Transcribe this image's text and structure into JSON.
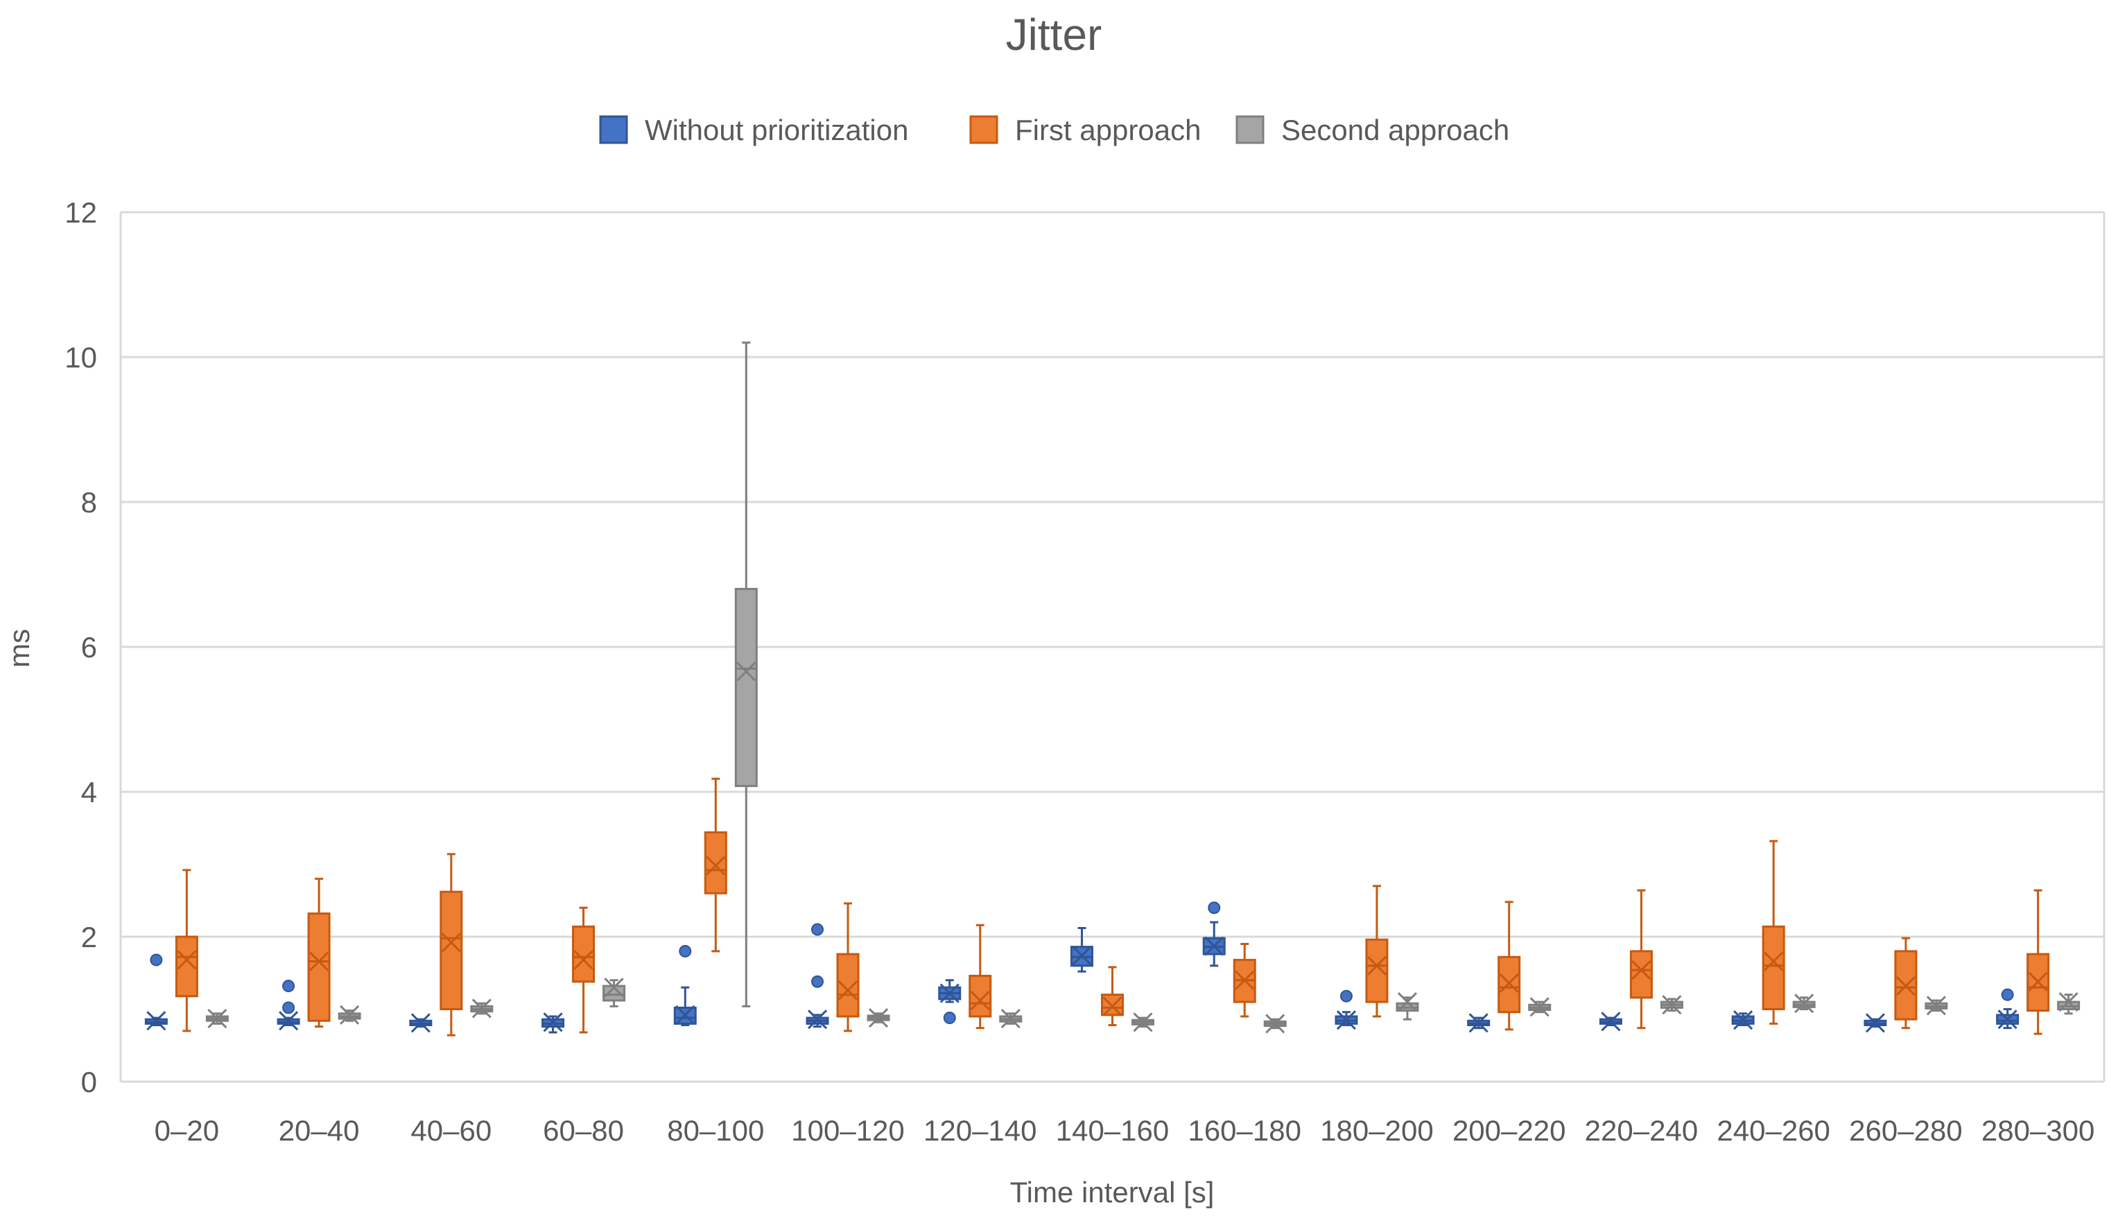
{
  "chart_data": {
    "type": "boxplot",
    "title": "Jitter",
    "xlabel": "Time interval [s]",
    "ylabel": "ms",
    "ylim": [
      0,
      12
    ],
    "yticks": [
      0,
      2,
      4,
      6,
      8,
      10,
      12
    ],
    "grid": true,
    "legend_position": "top",
    "categories": [
      "0–20",
      "20–40",
      "40–60",
      "60–80",
      "80–100",
      "100–120",
      "120–140",
      "140–160",
      "160–180",
      "180–200",
      "200–220",
      "220–240",
      "240–260",
      "260–280",
      "280–300"
    ],
    "series": [
      {
        "name": "Without prioritization",
        "color": "#4472C4",
        "stroke": "#2F5597",
        "boxes": [
          {
            "min": 0.78,
            "q1": 0.8,
            "median": 0.82,
            "q3": 0.86,
            "max": 0.88,
            "mean": 0.84,
            "outliers": [
              1.68
            ]
          },
          {
            "min": 0.78,
            "q1": 0.8,
            "median": 0.82,
            "q3": 0.86,
            "max": 0.88,
            "mean": 0.84,
            "outliers": [
              1.02,
              1.32
            ]
          },
          {
            "min": 0.76,
            "q1": 0.78,
            "median": 0.8,
            "q3": 0.84,
            "max": 0.86,
            "mean": 0.81,
            "outliers": []
          },
          {
            "min": 0.68,
            "q1": 0.76,
            "median": 0.8,
            "q3": 0.86,
            "max": 0.9,
            "mean": 0.82,
            "outliers": []
          },
          {
            "min": 0.78,
            "q1": 0.8,
            "median": 0.88,
            "q3": 1.02,
            "max": 1.3,
            "mean": 0.92,
            "outliers": [
              1.8
            ]
          },
          {
            "min": 0.76,
            "q1": 0.8,
            "median": 0.84,
            "q3": 0.88,
            "max": 0.92,
            "mean": 0.86,
            "outliers": [
              1.38,
              2.1
            ]
          },
          {
            "min": 1.1,
            "q1": 1.14,
            "median": 1.22,
            "q3": 1.3,
            "max": 1.4,
            "mean": 1.22,
            "outliers": [
              0.88
            ]
          },
          {
            "min": 1.52,
            "q1": 1.6,
            "median": 1.72,
            "q3": 1.86,
            "max": 2.12,
            "mean": 1.74,
            "outliers": []
          },
          {
            "min": 1.6,
            "q1": 1.76,
            "median": 1.86,
            "q3": 1.98,
            "max": 2.2,
            "mean": 1.87,
            "outliers": [
              2.4
            ]
          },
          {
            "min": 0.78,
            "q1": 0.8,
            "median": 0.84,
            "q3": 0.9,
            "max": 0.96,
            "mean": 0.85,
            "outliers": [
              1.18
            ]
          },
          {
            "min": 0.74,
            "q1": 0.78,
            "median": 0.8,
            "q3": 0.84,
            "max": 0.88,
            "mean": 0.81,
            "outliers": []
          },
          {
            "min": 0.78,
            "q1": 0.8,
            "median": 0.82,
            "q3": 0.86,
            "max": 0.88,
            "mean": 0.83,
            "outliers": []
          },
          {
            "min": 0.78,
            "q1": 0.8,
            "median": 0.84,
            "q3": 0.9,
            "max": 0.94,
            "mean": 0.85,
            "outliers": []
          },
          {
            "min": 0.76,
            "q1": 0.78,
            "median": 0.8,
            "q3": 0.84,
            "max": 0.86,
            "mean": 0.81,
            "outliers": []
          },
          {
            "min": 0.74,
            "q1": 0.8,
            "median": 0.84,
            "q3": 0.92,
            "max": 1.0,
            "mean": 0.86,
            "outliers": [
              1.2
            ]
          }
        ]
      },
      {
        "name": "First approach",
        "color": "#ED7D31",
        "stroke": "#C55A11",
        "boxes": [
          {
            "min": 0.7,
            "q1": 1.18,
            "median": 1.72,
            "q3": 2.0,
            "max": 2.92,
            "mean": 1.68,
            "outliers": []
          },
          {
            "min": 0.76,
            "q1": 0.84,
            "median": 1.66,
            "q3": 2.32,
            "max": 2.8,
            "mean": 1.66,
            "outliers": []
          },
          {
            "min": 0.64,
            "q1": 1.0,
            "median": 1.98,
            "q3": 2.62,
            "max": 3.14,
            "mean": 1.92,
            "outliers": []
          },
          {
            "min": 0.68,
            "q1": 1.38,
            "median": 1.72,
            "q3": 2.14,
            "max": 2.4,
            "mean": 1.68,
            "outliers": []
          },
          {
            "min": 1.8,
            "q1": 2.6,
            "median": 2.92,
            "q3": 3.44,
            "max": 4.18,
            "mean": 2.98,
            "outliers": []
          },
          {
            "min": 0.7,
            "q1": 0.9,
            "median": 1.2,
            "q3": 1.76,
            "max": 2.46,
            "mean": 1.26,
            "outliers": []
          },
          {
            "min": 0.74,
            "q1": 0.9,
            "median": 1.08,
            "q3": 1.46,
            "max": 2.16,
            "mean": 1.12,
            "outliers": []
          },
          {
            "min": 0.78,
            "q1": 0.92,
            "median": 1.02,
            "q3": 1.2,
            "max": 1.58,
            "mean": 1.04,
            "outliers": []
          },
          {
            "min": 0.9,
            "q1": 1.1,
            "median": 1.4,
            "q3": 1.68,
            "max": 1.9,
            "mean": 1.4,
            "outliers": []
          },
          {
            "min": 0.9,
            "q1": 1.1,
            "median": 1.6,
            "q3": 1.96,
            "max": 2.7,
            "mean": 1.6,
            "outliers": []
          },
          {
            "min": 0.72,
            "q1": 0.96,
            "median": 1.3,
            "q3": 1.72,
            "max": 2.48,
            "mean": 1.36,
            "outliers": []
          },
          {
            "min": 0.74,
            "q1": 1.16,
            "median": 1.54,
            "q3": 1.8,
            "max": 2.64,
            "mean": 1.54,
            "outliers": []
          },
          {
            "min": 0.8,
            "q1": 1.0,
            "median": 1.6,
            "q3": 2.14,
            "max": 3.32,
            "mean": 1.66,
            "outliers": []
          },
          {
            "min": 0.74,
            "q1": 0.86,
            "median": 1.3,
            "q3": 1.8,
            "max": 1.98,
            "mean": 1.32,
            "outliers": []
          },
          {
            "min": 0.66,
            "q1": 0.98,
            "median": 1.3,
            "q3": 1.76,
            "max": 2.64,
            "mean": 1.38,
            "outliers": []
          }
        ]
      },
      {
        "name": "Second approach",
        "color": "#A5A5A5",
        "stroke": "#7F7F7F",
        "boxes": [
          {
            "min": 0.8,
            "q1": 0.84,
            "median": 0.87,
            "q3": 0.9,
            "max": 0.94,
            "mean": 0.87,
            "outliers": []
          },
          {
            "min": 0.84,
            "q1": 0.87,
            "median": 0.9,
            "q3": 0.94,
            "max": 0.98,
            "mean": 0.92,
            "outliers": []
          },
          {
            "min": 0.94,
            "q1": 0.97,
            "median": 1.0,
            "q3": 1.04,
            "max": 1.08,
            "mean": 1.01,
            "outliers": []
          },
          {
            "min": 1.04,
            "q1": 1.12,
            "median": 1.2,
            "q3": 1.32,
            "max": 1.4,
            "mean": 1.3,
            "outliers": []
          },
          {
            "min": 1.04,
            "q1": 4.08,
            "median": 5.7,
            "q3": 6.8,
            "max": 10.2,
            "mean": 5.66,
            "outliers": []
          },
          {
            "min": 0.82,
            "q1": 0.85,
            "median": 0.88,
            "q3": 0.91,
            "max": 0.94,
            "mean": 0.88,
            "outliers": []
          },
          {
            "min": 0.8,
            "q1": 0.83,
            "median": 0.86,
            "q3": 0.9,
            "max": 0.94,
            "mean": 0.87,
            "outliers": []
          },
          {
            "min": 0.76,
            "q1": 0.79,
            "median": 0.82,
            "q3": 0.85,
            "max": 0.88,
            "mean": 0.82,
            "outliers": []
          },
          {
            "min": 0.74,
            "q1": 0.77,
            "median": 0.8,
            "q3": 0.83,
            "max": 0.86,
            "mean": 0.8,
            "outliers": []
          },
          {
            "min": 0.86,
            "q1": 0.98,
            "median": 1.02,
            "q3": 1.08,
            "max": 1.16,
            "mean": 1.1,
            "outliers": []
          },
          {
            "min": 0.96,
            "q1": 0.99,
            "median": 1.02,
            "q3": 1.06,
            "max": 1.1,
            "mean": 1.03,
            "outliers": []
          },
          {
            "min": 0.98,
            "q1": 1.02,
            "median": 1.06,
            "q3": 1.1,
            "max": 1.14,
            "mean": 1.06,
            "outliers": []
          },
          {
            "min": 1.0,
            "q1": 1.03,
            "median": 1.06,
            "q3": 1.1,
            "max": 1.16,
            "mean": 1.08,
            "outliers": []
          },
          {
            "min": 0.98,
            "q1": 1.01,
            "median": 1.04,
            "q3": 1.08,
            "max": 1.12,
            "mean": 1.05,
            "outliers": []
          },
          {
            "min": 0.94,
            "q1": 1.0,
            "median": 1.04,
            "q3": 1.1,
            "max": 1.2,
            "mean": 1.1,
            "outliers": []
          }
        ]
      }
    ]
  }
}
